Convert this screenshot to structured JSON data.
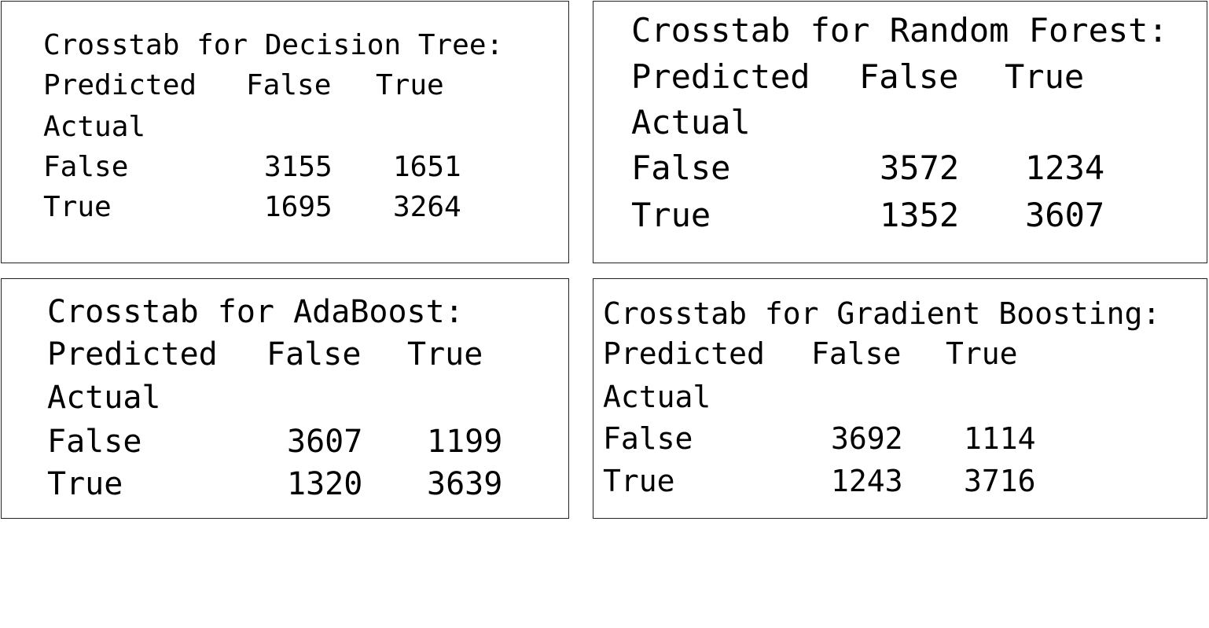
{
  "panels": [
    {
      "title": "Crosstab for Decision Tree:",
      "col_axis_label": "Predicted",
      "col_headers": [
        "False",
        "True"
      ],
      "row_axis_label": "Actual",
      "rows": [
        {
          "label": "False",
          "values": [
            "3155",
            "1651"
          ]
        },
        {
          "label": "True",
          "values": [
            "1695",
            "3264"
          ]
        }
      ]
    },
    {
      "title": "Crosstab for Random Forest:",
      "col_axis_label": "Predicted",
      "col_headers": [
        "False",
        "True"
      ],
      "row_axis_label": "Actual",
      "rows": [
        {
          "label": "False",
          "values": [
            "3572",
            "1234"
          ]
        },
        {
          "label": "True",
          "values": [
            "1352",
            "3607"
          ]
        }
      ]
    },
    {
      "title": "Crosstab for AdaBoost:",
      "col_axis_label": "Predicted",
      "col_headers": [
        "False",
        "True"
      ],
      "row_axis_label": "Actual",
      "rows": [
        {
          "label": "False",
          "values": [
            "3607",
            "1199"
          ]
        },
        {
          "label": "True",
          "values": [
            "1320",
            "3639"
          ]
        }
      ]
    },
    {
      "title": "Crosstab for Gradient Boosting:",
      "col_axis_label": "Predicted",
      "col_headers": [
        "False",
        "True"
      ],
      "row_axis_label": "Actual",
      "rows": [
        {
          "label": "False",
          "values": [
            "3692",
            "1114"
          ]
        },
        {
          "label": "True",
          "values": [
            "1243",
            "3716"
          ]
        }
      ]
    }
  ]
}
